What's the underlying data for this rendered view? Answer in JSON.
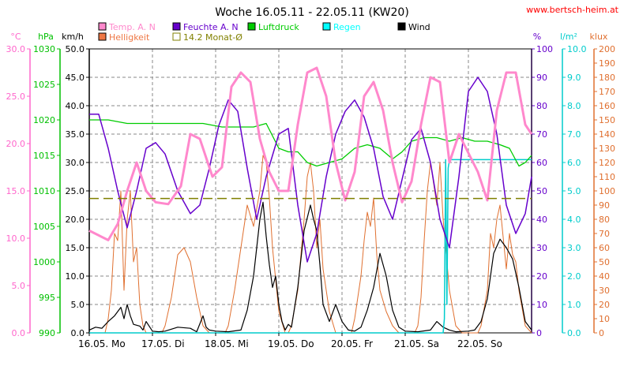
{
  "chart_data": {
    "type": "line",
    "title": "Woche 16.05.11 - 22.05.11 (KW20)",
    "source": "www.bertsch-heim.at",
    "grid": true,
    "axes": {
      "temp": {
        "unit": "°C",
        "range": [
          0,
          30
        ],
        "ticks": [
          "0.0",
          "5.0",
          "10.0",
          "15.0",
          "20.0",
          "25.0",
          "30.0"
        ],
        "color": "#ff66cc"
      },
      "pressure": {
        "unit": "hPa",
        "range": [
          990,
          1030
        ],
        "ticks": [
          "990",
          "995",
          "1000",
          "1005",
          "1010",
          "1015",
          "1020",
          "1025",
          "1030"
        ],
        "color": "#00c000"
      },
      "wind": {
        "unit": "km/h",
        "range": [
          0,
          50
        ],
        "ticks": [
          "0.0",
          "5.0",
          "10.0",
          "15.0",
          "20.0",
          "25.0",
          "30.0",
          "35.0",
          "40.0",
          "45.0",
          "50.0"
        ],
        "color": "#000000"
      },
      "humidity": {
        "unit": "%",
        "range": [
          0,
          100
        ],
        "ticks": [
          "0",
          "10",
          "20",
          "30",
          "40",
          "50",
          "60",
          "70",
          "80",
          "90",
          "100"
        ],
        "color": "#6600cc"
      },
      "rain": {
        "unit": "l/m²",
        "range": [
          0,
          10
        ],
        "ticks": [
          "0.0",
          "1.0",
          "2.0",
          "3.0",
          "4.0",
          "5.0",
          "6.0",
          "7.0",
          "8.0",
          "9.0",
          "10.0"
        ],
        "color": "#00cccc"
      },
      "light": {
        "unit": "klux",
        "range": [
          0,
          200
        ],
        "ticks": [
          "0",
          "10",
          "20",
          "30",
          "40",
          "50",
          "60",
          "70",
          "80",
          "90",
          "100",
          "110",
          "120",
          "130",
          "140",
          "150",
          "160",
          "170",
          "180",
          "190",
          "200"
        ],
        "color": "#e07030"
      }
    },
    "days": [
      "16.05. Mo",
      "17.05. Di",
      "18.05. Mi",
      "19.05. Do",
      "20.05. Fr",
      "21.05. Sa",
      "22.05. So"
    ],
    "x_range": [
      0,
      7
    ],
    "legend": [
      {
        "name": "Temp. A. N",
        "color": "#ff88cc",
        "style": "fill"
      },
      {
        "name": "Feuchte A. N",
        "color": "#6600cc",
        "style": "fill"
      },
      {
        "name": "Luftdruck",
        "color": "#00cc00",
        "style": "fill"
      },
      {
        "name": "Regen",
        "color": "#00ffff",
        "style": "fill"
      },
      {
        "name": "Wind",
        "color": "#000000",
        "style": "fill"
      },
      {
        "name": "Helligkeit",
        "color": "#ee7744",
        "style": "fill"
      },
      {
        "name": "14.2 Monat-Ø",
        "color": "#808000",
        "style": "outline"
      }
    ],
    "series": [
      {
        "key": "temp",
        "name": "Temp. A. N",
        "axis": "temp",
        "color": "#ff88cc",
        "x": [
          0,
          0.15,
          0.3,
          0.45,
          0.6,
          0.75,
          0.9,
          1.05,
          1.25,
          1.45,
          1.6,
          1.75,
          1.95,
          2.1,
          2.25,
          2.4,
          2.55,
          2.7,
          2.85,
          3.0,
          3.15,
          3.3,
          3.45,
          3.6,
          3.75,
          3.9,
          4.05,
          4.2,
          4.35,
          4.5,
          4.65,
          4.8,
          4.95,
          5.1,
          5.25,
          5.4,
          5.55,
          5.7,
          5.85,
          6.0,
          6.15,
          6.3,
          6.45,
          6.6,
          6.75,
          6.9,
          7.0
        ],
        "y": [
          10.8,
          10.3,
          9.8,
          11.5,
          15.0,
          18.0,
          15.0,
          13.8,
          13.6,
          15.5,
          21.0,
          20.5,
          16.5,
          17.5,
          26.0,
          27.5,
          26.5,
          20.5,
          17.0,
          15.0,
          15.0,
          22.0,
          27.5,
          28.0,
          25.0,
          18.0,
          14.0,
          17.0,
          25.0,
          26.5,
          23.5,
          18.0,
          13.8,
          16.0,
          22.0,
          27.0,
          26.5,
          18.0,
          21.0,
          19.0,
          17.0,
          14.0,
          23.5,
          27.5,
          27.5,
          22.0,
          21.0
        ]
      },
      {
        "key": "humidity",
        "name": "Feuchte A. N",
        "axis": "humidity",
        "color": "#6600cc",
        "x": [
          0,
          0.15,
          0.3,
          0.45,
          0.6,
          0.75,
          0.9,
          1.05,
          1.2,
          1.4,
          1.6,
          1.75,
          1.9,
          2.05,
          2.2,
          2.35,
          2.5,
          2.65,
          2.8,
          3.0,
          3.15,
          3.3,
          3.45,
          3.6,
          3.75,
          3.9,
          4.05,
          4.2,
          4.35,
          4.5,
          4.65,
          4.8,
          4.95,
          5.1,
          5.25,
          5.4,
          5.55,
          5.7,
          5.85,
          6.0,
          6.15,
          6.3,
          6.45,
          6.6,
          6.75,
          6.9,
          7.0
        ],
        "y": [
          77,
          77,
          65,
          50,
          37,
          50,
          65,
          67,
          63,
          50,
          42,
          45,
          58,
          73,
          82,
          78,
          58,
          40,
          55,
          70,
          72,
          45,
          25,
          35,
          55,
          70,
          78,
          82,
          76,
          65,
          48,
          40,
          54,
          68,
          72,
          60,
          40,
          30,
          55,
          85,
          90,
          85,
          70,
          45,
          35,
          42,
          55
        ]
      },
      {
        "key": "pressure",
        "name": "Luftdruck",
        "axis": "pressure",
        "color": "#00cc00",
        "x": [
          0,
          0.3,
          0.6,
          0.9,
          1.2,
          1.5,
          1.8,
          2.1,
          2.4,
          2.6,
          2.8,
          3.0,
          3.15,
          3.3,
          3.45,
          3.6,
          3.8,
          4.0,
          4.2,
          4.4,
          4.6,
          4.8,
          4.95,
          5.1,
          5.3,
          5.5,
          5.7,
          5.9,
          6.1,
          6.3,
          6.5,
          6.65,
          6.8,
          6.9,
          7.0
        ],
        "y": [
          1020,
          1020,
          1019.5,
          1019.5,
          1019.5,
          1019.5,
          1019.5,
          1019,
          1019,
          1019,
          1019.5,
          1016,
          1015.5,
          1015.5,
          1014,
          1013.5,
          1014,
          1014.5,
          1016,
          1016.5,
          1016,
          1014.5,
          1015.5,
          1017,
          1017.5,
          1017.5,
          1017,
          1017.5,
          1017,
          1017,
          1016.5,
          1016,
          1013.5,
          1014,
          1015
        ]
      },
      {
        "key": "rain",
        "name": "Regen",
        "axis": "rain",
        "color": "#00cccc",
        "x": [
          0,
          5.6,
          5.62,
          5.64,
          5.66,
          5.68,
          5.7,
          6.9,
          7.0
        ],
        "y": [
          0,
          0,
          0.5,
          6.1,
          1.0,
          5.8,
          6.1,
          6.1,
          6.1
        ]
      },
      {
        "key": "wind",
        "name": "Wind",
        "axis": "wind",
        "color": "#000000",
        "x": [
          0,
          0.1,
          0.2,
          0.3,
          0.4,
          0.5,
          0.55,
          0.6,
          0.65,
          0.7,
          0.8,
          0.85,
          0.9,
          1.0,
          1.1,
          1.2,
          1.4,
          1.6,
          1.7,
          1.8,
          1.85,
          1.9,
          2.0,
          2.2,
          2.4,
          2.5,
          2.6,
          2.7,
          2.75,
          2.8,
          2.85,
          2.9,
          2.95,
          3.0,
          3.05,
          3.1,
          3.15,
          3.2,
          3.3,
          3.4,
          3.5,
          3.55,
          3.6,
          3.65,
          3.7,
          3.8,
          3.9,
          4.0,
          4.1,
          4.2,
          4.3,
          4.4,
          4.5,
          4.6,
          4.7,
          4.8,
          4.9,
          5.0,
          5.2,
          5.4,
          5.5,
          5.6,
          5.7,
          5.8,
          6.0,
          6.1,
          6.2,
          6.3,
          6.4,
          6.5,
          6.6,
          6.7,
          6.8,
          6.9,
          7.0
        ],
        "y": [
          0.5,
          1.0,
          0.8,
          2.0,
          3.0,
          4.5,
          2.5,
          5.0,
          3.0,
          1.5,
          1.2,
          0.5,
          2.0,
          0.3,
          0.2,
          0.3,
          1.0,
          0.8,
          0.2,
          3.0,
          1.0,
          0.5,
          0.3,
          0.2,
          0.5,
          4.0,
          10.0,
          20.0,
          23.0,
          17.0,
          12.0,
          8.0,
          10.0,
          5.0,
          2.0,
          0.5,
          1.5,
          1.0,
          8.0,
          18.0,
          22.5,
          20.0,
          18.0,
          12.0,
          5.0,
          2.0,
          5.0,
          2.0,
          0.5,
          0.3,
          1.0,
          4.0,
          8.0,
          14.0,
          10.0,
          4.0,
          1.0,
          0.3,
          0.2,
          0.5,
          2.0,
          1.0,
          0.5,
          0.2,
          0.3,
          0.5,
          2.0,
          6.0,
          14.0,
          16.5,
          15.0,
          13.0,
          8.0,
          2.0,
          0.5
        ]
      },
      {
        "key": "light",
        "name": "Helligkeit",
        "axis": "light",
        "color": "#e07030",
        "x": [
          0,
          0.25,
          0.3,
          0.35,
          0.4,
          0.45,
          0.5,
          0.55,
          0.6,
          0.65,
          0.7,
          0.75,
          0.8,
          0.85,
          0.9,
          1.15,
          1.2,
          1.3,
          1.4,
          1.5,
          1.6,
          1.7,
          1.8,
          1.9,
          2.15,
          2.2,
          2.3,
          2.4,
          2.5,
          2.6,
          2.7,
          2.75,
          2.8,
          2.85,
          2.9,
          3.0,
          3.1,
          3.15,
          3.2,
          3.3,
          3.4,
          3.45,
          3.5,
          3.55,
          3.6,
          3.65,
          3.7,
          3.8,
          3.9,
          4.15,
          4.2,
          4.3,
          4.35,
          4.4,
          4.45,
          4.5,
          4.55,
          4.6,
          4.7,
          4.8,
          4.9,
          5.15,
          5.2,
          5.25,
          5.3,
          5.35,
          5.4,
          5.5,
          5.55,
          5.6,
          5.7,
          5.8,
          5.9,
          6.15,
          6.2,
          6.3,
          6.35,
          6.4,
          6.45,
          6.5,
          6.6,
          6.65,
          6.7,
          6.75,
          6.8,
          6.9,
          7.0
        ],
        "y": [
          0,
          0,
          10,
          30,
          70,
          65,
          100,
          30,
          80,
          100,
          50,
          60,
          20,
          5,
          0,
          0,
          5,
          25,
          55,
          60,
          50,
          25,
          5,
          0,
          0,
          5,
          30,
          60,
          90,
          75,
          100,
          125,
          120,
          95,
          60,
          15,
          0,
          0,
          5,
          30,
          80,
          110,
          120,
          100,
          60,
          80,
          45,
          15,
          0,
          0,
          10,
          40,
          65,
          85,
          75,
          95,
          55,
          30,
          15,
          5,
          0,
          0,
          5,
          25,
          65,
          100,
          120,
          90,
          120,
          80,
          30,
          5,
          0,
          0,
          5,
          30,
          70,
          60,
          80,
          90,
          45,
          70,
          55,
          50,
          30,
          5,
          0
        ]
      }
    ],
    "average_line": {
      "name": "14.2 Monat-Ø",
      "axis": "temp",
      "value": 14.2,
      "color": "#808000"
    }
  }
}
